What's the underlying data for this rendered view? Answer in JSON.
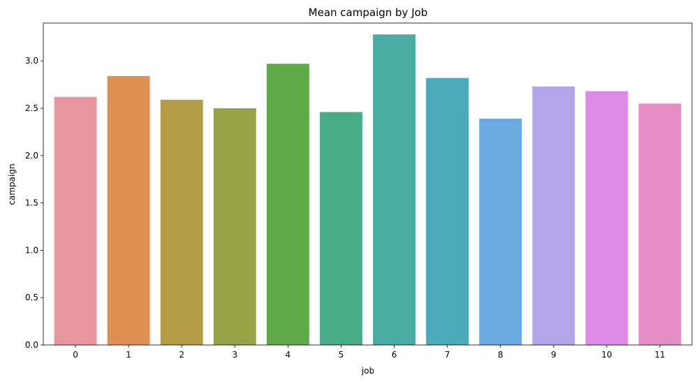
{
  "chart_data": {
    "type": "bar",
    "title": "Mean campaign by Job",
    "xlabel": "job",
    "ylabel": "campaign",
    "categories": [
      "0",
      "1",
      "2",
      "3",
      "4",
      "5",
      "6",
      "7",
      "8",
      "9",
      "10",
      "11"
    ],
    "values": [
      2.62,
      2.84,
      2.59,
      2.5,
      2.97,
      2.46,
      3.28,
      2.82,
      2.39,
      2.73,
      2.68,
      2.55
    ],
    "colors": [
      "#e8959f",
      "#e08f52",
      "#b59a47",
      "#99a246",
      "#5faa47",
      "#49ac87",
      "#4aaca0",
      "#4aaab9",
      "#6aaae0",
      "#b3a5e8",
      "#de8be8",
      "#e68ec4"
    ],
    "ylim": [
      0,
      3.4
    ],
    "yticks": [
      0.0,
      0.5,
      1.0,
      1.5,
      2.0,
      2.5,
      3.0
    ],
    "ytick_labels": [
      "0.0",
      "0.5",
      "1.0",
      "1.5",
      "2.0",
      "2.5",
      "3.0"
    ],
    "grid": false,
    "legend": "none"
  }
}
